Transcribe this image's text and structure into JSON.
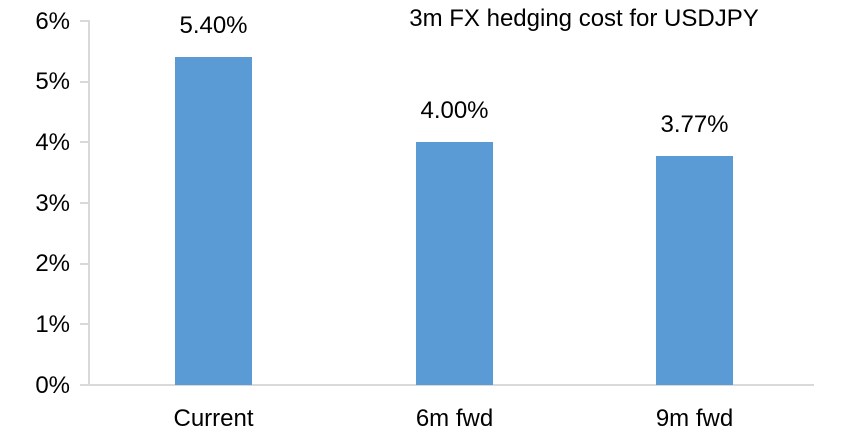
{
  "chart_data": {
    "type": "bar",
    "title": "3m FX hedging cost for USDJPY",
    "categories": [
      "Current",
      "6m fwd",
      "9m fwd"
    ],
    "values": [
      5.4,
      4.0,
      3.77
    ],
    "value_labels": [
      "5.40%",
      "4.00%",
      "3.77%"
    ],
    "ytick_values": [
      0,
      1,
      2,
      3,
      4,
      5,
      6
    ],
    "ytick_labels": [
      "0%",
      "1%",
      "2%",
      "3%",
      "4%",
      "5%",
      "6%"
    ],
    "ylim": [
      0,
      6
    ],
    "xlabel": "",
    "ylabel": "",
    "legend_position": "none",
    "grid": "off",
    "bar_color": "#5B9BD5",
    "axis_color": "#D9D9D9",
    "text_color": "#000000"
  }
}
